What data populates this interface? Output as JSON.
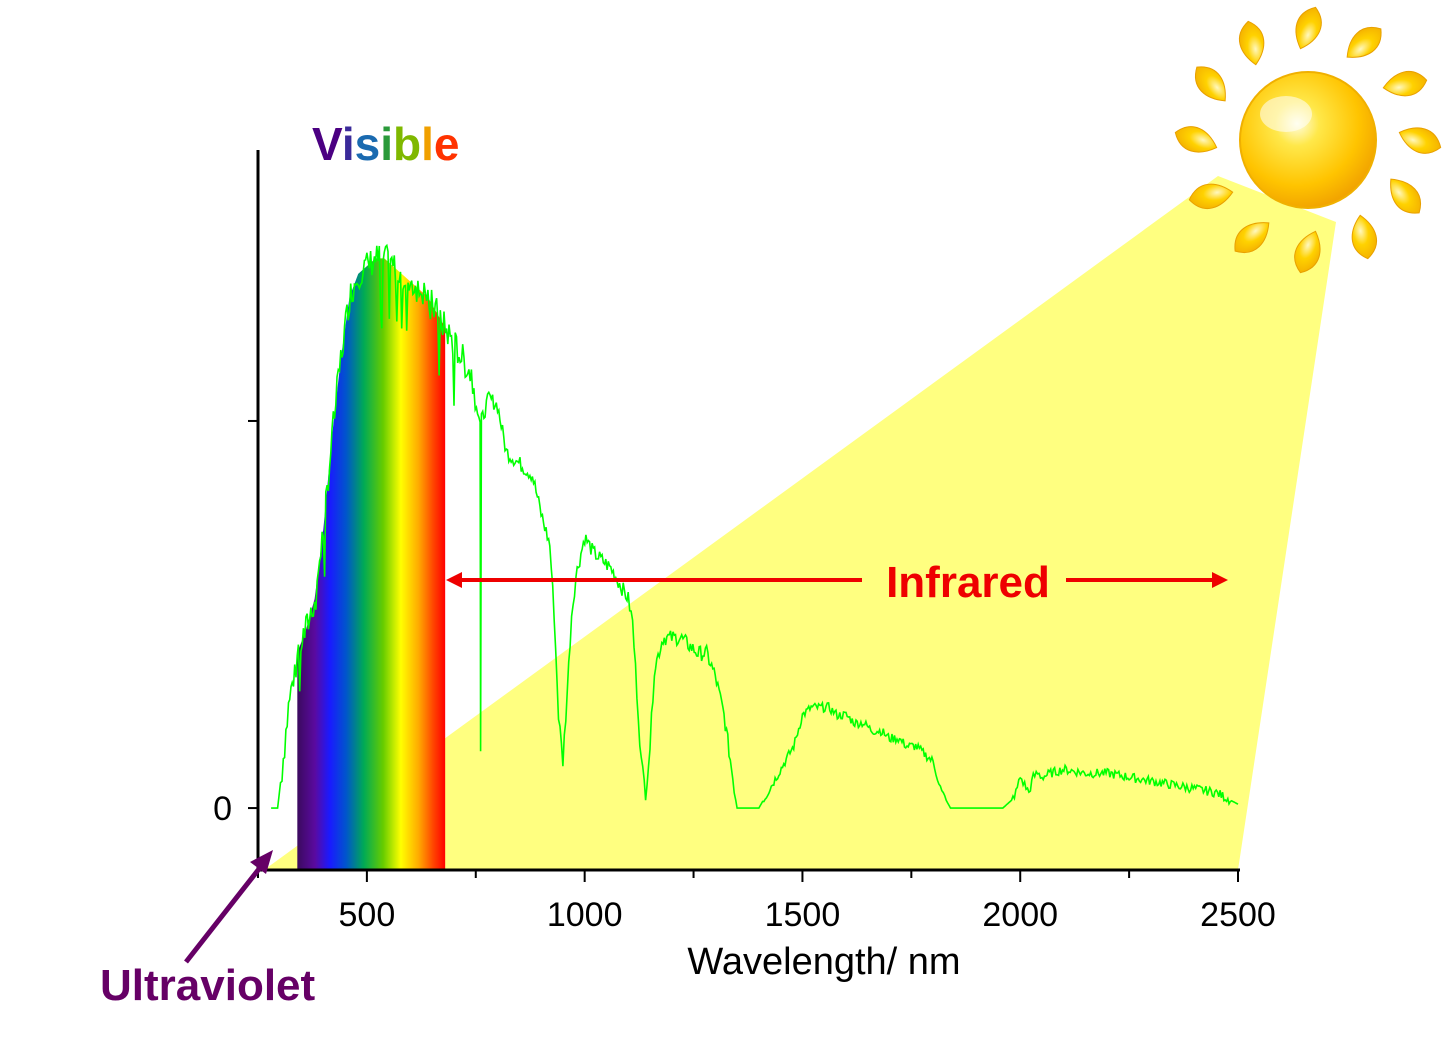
{
  "chart_data": {
    "type": "line",
    "xlabel": "Wavelength/ nm",
    "ylabel": "",
    "xlim": [
      250,
      2500
    ],
    "ylim": [
      -0.08,
      0.85
    ],
    "x_ticks": [
      500,
      1000,
      1500,
      2000,
      2500
    ],
    "x_tick_labels": [
      "500",
      "1000",
      "1500",
      "2000",
      "2500"
    ],
    "y_ticks": [
      0,
      0.5
    ],
    "y_tick_labels": [
      "0",
      ""
    ],
    "grid": false,
    "series": [
      {
        "color": "#00ff00",
        "points": [
          [
            280,
            0.0
          ],
          [
            295,
            0.0
          ],
          [
            305,
            0.05
          ],
          [
            320,
            0.13
          ],
          [
            340,
            0.2
          ],
          [
            360,
            0.23
          ],
          [
            380,
            0.27
          ],
          [
            400,
            0.36
          ],
          [
            420,
            0.48
          ],
          [
            440,
            0.58
          ],
          [
            460,
            0.66
          ],
          [
            480,
            0.69
          ],
          [
            500,
            0.7
          ],
          [
            520,
            0.71
          ],
          [
            540,
            0.71
          ],
          [
            560,
            0.7
          ],
          [
            580,
            0.69
          ],
          [
            600,
            0.68
          ],
          [
            620,
            0.67
          ],
          [
            640,
            0.66
          ],
          [
            660,
            0.64
          ],
          [
            680,
            0.62
          ],
          [
            700,
            0.6
          ],
          [
            720,
            0.58
          ],
          [
            740,
            0.56
          ],
          [
            760,
            0.5
          ],
          [
            761,
            0.07
          ],
          [
            763,
            0.5
          ],
          [
            780,
            0.53
          ],
          [
            800,
            0.52
          ],
          [
            820,
            0.46
          ],
          [
            840,
            0.45
          ],
          [
            860,
            0.44
          ],
          [
            880,
            0.43
          ],
          [
            900,
            0.38
          ],
          [
            920,
            0.34
          ],
          [
            930,
            0.25
          ],
          [
            940,
            0.12
          ],
          [
            950,
            0.06
          ],
          [
            960,
            0.15
          ],
          [
            970,
            0.25
          ],
          [
            980,
            0.3
          ],
          [
            1000,
            0.35
          ],
          [
            1020,
            0.33
          ],
          [
            1040,
            0.32
          ],
          [
            1060,
            0.31
          ],
          [
            1080,
            0.29
          ],
          [
            1100,
            0.27
          ],
          [
            1110,
            0.24
          ],
          [
            1120,
            0.15
          ],
          [
            1130,
            0.06
          ],
          [
            1140,
            0.02
          ],
          [
            1150,
            0.08
          ],
          [
            1160,
            0.18
          ],
          [
            1180,
            0.22
          ],
          [
            1200,
            0.22
          ],
          [
            1220,
            0.22
          ],
          [
            1240,
            0.21
          ],
          [
            1260,
            0.2
          ],
          [
            1280,
            0.2
          ],
          [
            1300,
            0.17
          ],
          [
            1320,
            0.12
          ],
          [
            1340,
            0.04
          ],
          [
            1350,
            0.0
          ],
          [
            1360,
            0.0
          ],
          [
            1380,
            0.0
          ],
          [
            1400,
            0.0
          ],
          [
            1420,
            0.02
          ],
          [
            1440,
            0.04
          ],
          [
            1460,
            0.06
          ],
          [
            1480,
            0.08
          ],
          [
            1500,
            0.12
          ],
          [
            1520,
            0.13
          ],
          [
            1540,
            0.13
          ],
          [
            1560,
            0.13
          ],
          [
            1580,
            0.12
          ],
          [
            1600,
            0.12
          ],
          [
            1620,
            0.11
          ],
          [
            1640,
            0.11
          ],
          [
            1660,
            0.1
          ],
          [
            1680,
            0.1
          ],
          [
            1700,
            0.09
          ],
          [
            1720,
            0.09
          ],
          [
            1740,
            0.08
          ],
          [
            1760,
            0.08
          ],
          [
            1780,
            0.07
          ],
          [
            1800,
            0.06
          ],
          [
            1810,
            0.04
          ],
          [
            1820,
            0.02
          ],
          [
            1830,
            0.01
          ],
          [
            1840,
            0.0
          ],
          [
            1870,
            0.0
          ],
          [
            1900,
            0.0
          ],
          [
            1930,
            0.0
          ],
          [
            1960,
            0.0
          ],
          [
            1980,
            0.01
          ],
          [
            1990,
            0.02
          ],
          [
            2000,
            0.04
          ],
          [
            2010,
            0.03
          ],
          [
            2020,
            0.02
          ],
          [
            2030,
            0.04
          ],
          [
            2040,
            0.045
          ],
          [
            2050,
            0.04
          ],
          [
            2070,
            0.045
          ],
          [
            2100,
            0.05
          ],
          [
            2150,
            0.045
          ],
          [
            2200,
            0.045
          ],
          [
            2250,
            0.04
          ],
          [
            2300,
            0.035
          ],
          [
            2350,
            0.03
          ],
          [
            2400,
            0.025
          ],
          [
            2450,
            0.02
          ],
          [
            2500,
            0.005
          ]
        ]
      }
    ],
    "bands": [
      {
        "label": "Ultraviolet",
        "color": "#660066"
      },
      {
        "label": "Visible",
        "range": [
          340,
          680
        ]
      },
      {
        "label": "Infrared",
        "color": "#ee0000",
        "range": [
          680,
          2500
        ]
      }
    ]
  },
  "labels": {
    "visible": [
      "V",
      "i",
      "s",
      "i",
      "b",
      "l",
      "e"
    ],
    "infrared": "Infrared",
    "ultraviolet": "Ultraviolet"
  },
  "colors": {
    "visible_letters": [
      "#4b0082",
      "#3a2a9a",
      "#1a6ab0",
      "#2a9a3a",
      "#7fb800",
      "#f0a000",
      "#ff3300"
    ],
    "beam": "#ffff80",
    "infrared": "#ee0000",
    "ultraviolet": "#660066",
    "spectrum_line": "#00ff00",
    "sun_core": "#ffcc00"
  },
  "decorations": {
    "sun": "sun-icon"
  }
}
